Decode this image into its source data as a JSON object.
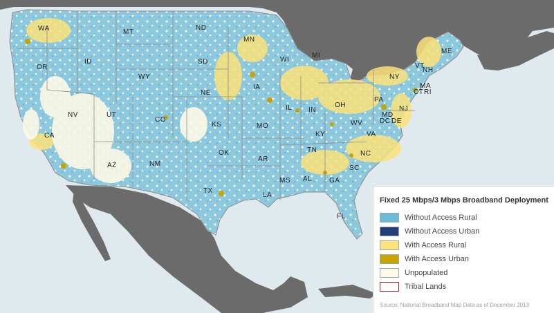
{
  "colors": {
    "water": "#dfe9ee",
    "foreign_land": "#6b6b6b",
    "without_access_rural": "#6bbad6",
    "without_access_urban": "#223f7a",
    "with_access_rural": "#fbe27a",
    "with_access_urban": "#c9a300",
    "unpopulated": "#fdf9e6",
    "tribal_lands": "#a11d1d",
    "state_border": "#8c8c8c"
  },
  "states": [
    "WA",
    "MT",
    "ND",
    "MN",
    "OR",
    "ID",
    "SD",
    "WI",
    "MI",
    "ME",
    "VT",
    "NH",
    "NY",
    "WY",
    "NE",
    "IA",
    "MA",
    "CT",
    "RI",
    "PA",
    "NJ",
    "NV",
    "UT",
    "CO",
    "IL",
    "IN",
    "OH",
    "MD",
    "DC",
    "DE",
    "CA",
    "KS",
    "MO",
    "KY",
    "WV",
    "VA",
    "OK",
    "AR",
    "TN",
    "NC",
    "AZ",
    "NM",
    "TX",
    "MS",
    "AL",
    "GA",
    "SC",
    "LA",
    "FL"
  ],
  "legend": {
    "title": "Fixed 25 Mbps/3 Mbps Broadband Deployment",
    "items": [
      {
        "label": "Without Access Rural",
        "color": "#6bbad6"
      },
      {
        "label": "Without Access Urban",
        "color": "#223f7a"
      },
      {
        "label": "With Access Rural",
        "color": "#fbe27a"
      },
      {
        "label": "With Access Urban",
        "color": "#c9a300"
      },
      {
        "label": "Unpopulated",
        "color": "#fdf9e6"
      },
      {
        "label": "Tribal Lands",
        "color": "#ffffff",
        "border": "#a11d1d"
      }
    ],
    "source": "Source: National Broadband Map Data as of December 2013"
  }
}
